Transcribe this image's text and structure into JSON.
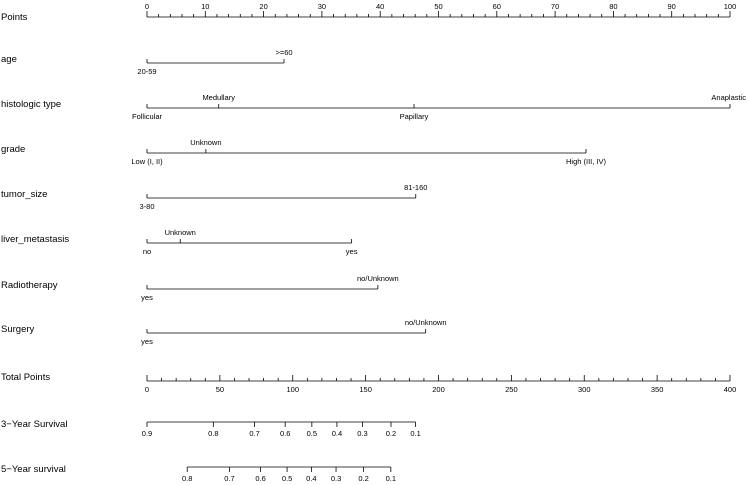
{
  "chart_data": {
    "type": "nomogram",
    "points_scale": {
      "label": "Points",
      "range": [
        0,
        100
      ],
      "major_ticks": [
        0,
        10,
        20,
        30,
        40,
        50,
        60,
        70,
        80,
        90,
        100
      ],
      "minor_step": 2
    },
    "predictors": [
      {
        "name": "age",
        "levels": [
          {
            "label": "20-59",
            "points": 0,
            "label_pos": "below"
          },
          {
            "label": ">=60",
            "points": 23.5,
            "label_pos": "above"
          }
        ]
      },
      {
        "name": "histologic type",
        "levels": [
          {
            "label": "Follicular",
            "points": 0,
            "label_pos": "below"
          },
          {
            "label": "Medullary",
            "points": 12.3,
            "label_pos": "above"
          },
          {
            "label": "Papillary",
            "points": 45.8,
            "label_pos": "below"
          },
          {
            "label": "Anaplastic",
            "points": 100,
            "label_pos": "above"
          }
        ]
      },
      {
        "name": "grade",
        "levels": [
          {
            "label": "Low (I, II)",
            "points": 0,
            "label_pos": "below"
          },
          {
            "label": "Unknown",
            "points": 10.1,
            "label_pos": "above"
          },
          {
            "label": "High (III, IV)",
            "points": 75.3,
            "label_pos": "below"
          }
        ]
      },
      {
        "name": "tumor_size",
        "levels": [
          {
            "label": "3-80",
            "points": 0,
            "label_pos": "below"
          },
          {
            "label": "81-160",
            "points": 46.1,
            "label_pos": "above"
          }
        ]
      },
      {
        "name": "liver_metastasis",
        "levels": [
          {
            "label": "no",
            "points": 0,
            "label_pos": "below"
          },
          {
            "label": "Unknown",
            "points": 5.7,
            "label_pos": "above"
          },
          {
            "label": "yes",
            "points": 35.1,
            "label_pos": "below"
          }
        ]
      },
      {
        "name": "Radiotherapy",
        "levels": [
          {
            "label": "yes",
            "points": 0,
            "label_pos": "below"
          },
          {
            "label": "no/Unknown",
            "points": 39.6,
            "label_pos": "above"
          }
        ]
      },
      {
        "name": "Surgery",
        "levels": [
          {
            "label": "yes",
            "points": 0,
            "label_pos": "below"
          },
          {
            "label": "no/Unknown",
            "points": 47.8,
            "label_pos": "above"
          }
        ]
      }
    ],
    "total_points": {
      "label": "Total Points",
      "range": [
        0,
        400
      ],
      "major_ticks": [
        0,
        50,
        100,
        150,
        200,
        250,
        300,
        350,
        400
      ],
      "minor_step": 10
    },
    "survival_axes": [
      {
        "label": "3−Year Survival",
        "ticks": [
          {
            "label": "0.9",
            "total_points": 0
          },
          {
            "label": "0.8",
            "total_points": 45.5
          },
          {
            "label": "0.7",
            "total_points": 73.8
          },
          {
            "label": "0.6",
            "total_points": 94.8
          },
          {
            "label": "0.5",
            "total_points": 113.1
          },
          {
            "label": "0.4",
            "total_points": 130.3
          },
          {
            "label": "0.3",
            "total_points": 147.8
          },
          {
            "label": "0.2",
            "total_points": 167.4
          },
          {
            "label": "0.1",
            "total_points": 184.3
          }
        ]
      },
      {
        "label": "5−Year survival",
        "ticks": [
          {
            "label": "0.8",
            "total_points": 27.6
          },
          {
            "label": "0.7",
            "total_points": 56.6
          },
          {
            "label": "0.6",
            "total_points": 77.9
          },
          {
            "label": "0.5",
            "total_points": 96.1
          },
          {
            "label": "0.4",
            "total_points": 112.8
          },
          {
            "label": "0.3",
            "total_points": 129.7
          },
          {
            "label": "0.2",
            "total_points": 148.6
          },
          {
            "label": "0.1",
            "total_points": 167.3
          }
        ]
      }
    ]
  }
}
